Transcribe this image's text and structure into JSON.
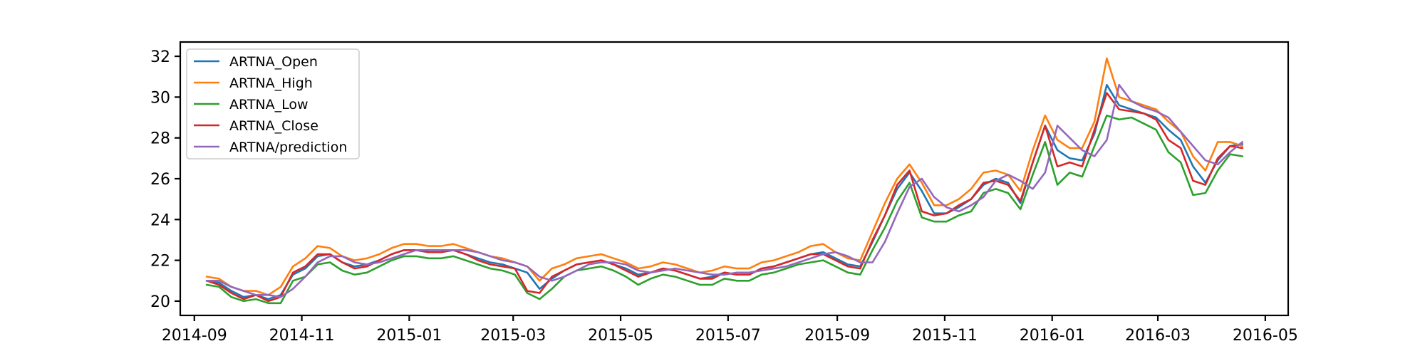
{
  "chart_data": {
    "type": "line",
    "title": "",
    "xlabel": "",
    "ylabel": "",
    "xlim": [
      "2014-08-24",
      "2016-05-14"
    ],
    "ylim": [
      19.3,
      32.7
    ],
    "grid": false,
    "legend_placement": "upper-left",
    "x_ticks": [
      "2014-09",
      "2014-11",
      "2015-01",
      "2015-03",
      "2015-05",
      "2015-07",
      "2015-09",
      "2015-11",
      "2016-01",
      "2016-03",
      "2016-05"
    ],
    "y_ticks": [
      20,
      22,
      24,
      26,
      28,
      30,
      32
    ],
    "x_tick_labels": [
      "2014-09",
      "2014-11",
      "2015-01",
      "2015-03",
      "2015-05",
      "2015-07",
      "2015-09",
      "2015-11",
      "2016-01",
      "2016-03",
      "2016-05"
    ],
    "y_tick_labels": [
      "20",
      "22",
      "24",
      "26",
      "28",
      "30",
      "32"
    ],
    "x": [
      "2014-09-08",
      "2014-09-15",
      "2014-09-22",
      "2014-09-29",
      "2014-10-06",
      "2014-10-13",
      "2014-10-20",
      "2014-10-27",
      "2014-11-03",
      "2014-11-10",
      "2014-11-17",
      "2014-11-24",
      "2014-12-01",
      "2014-12-08",
      "2014-12-15",
      "2014-12-22",
      "2014-12-29",
      "2015-01-05",
      "2015-01-12",
      "2015-01-19",
      "2015-01-26",
      "2015-02-02",
      "2015-02-09",
      "2015-02-16",
      "2015-02-23",
      "2015-03-02",
      "2015-03-09",
      "2015-03-16",
      "2015-03-23",
      "2015-03-30",
      "2015-04-06",
      "2015-04-13",
      "2015-04-20",
      "2015-04-27",
      "2015-05-04",
      "2015-05-11",
      "2015-05-18",
      "2015-05-25",
      "2015-06-01",
      "2015-06-08",
      "2015-06-15",
      "2015-06-22",
      "2015-06-29",
      "2015-07-06",
      "2015-07-13",
      "2015-07-20",
      "2015-07-27",
      "2015-08-03",
      "2015-08-10",
      "2015-08-17",
      "2015-08-24",
      "2015-08-31",
      "2015-09-07",
      "2015-09-14",
      "2015-09-21",
      "2015-09-28",
      "2015-10-05",
      "2015-10-12",
      "2015-10-19",
      "2015-10-26",
      "2015-11-02",
      "2015-11-09",
      "2015-11-16",
      "2015-11-23",
      "2015-11-30",
      "2015-12-07",
      "2015-12-14",
      "2015-12-21",
      "2015-12-28",
      "2016-01-04",
      "2016-01-11",
      "2016-01-18",
      "2016-01-25",
      "2016-02-01",
      "2016-02-08",
      "2016-02-15",
      "2016-02-22",
      "2016-02-29",
      "2016-03-07",
      "2016-03-14",
      "2016-03-21",
      "2016-03-28",
      "2016-04-04",
      "2016-04-11",
      "2016-04-18"
    ],
    "series": [
      {
        "name": "ARTNA_Open",
        "color": "#1f77b4",
        "values": [
          21.0,
          20.9,
          20.5,
          20.2,
          20.3,
          20.1,
          20.3,
          21.3,
          21.6,
          22.2,
          22.3,
          21.9,
          21.7,
          21.8,
          22.0,
          22.3,
          22.5,
          22.5,
          22.4,
          22.4,
          22.5,
          22.3,
          22.1,
          21.9,
          21.8,
          21.6,
          21.4,
          20.6,
          21.1,
          21.5,
          21.8,
          21.9,
          22.0,
          21.8,
          21.6,
          21.3,
          21.4,
          21.6,
          21.5,
          21.3,
          21.1,
          21.2,
          21.4,
          21.3,
          21.3,
          21.6,
          21.7,
          21.9,
          22.1,
          22.3,
          22.4,
          22.1,
          21.8,
          21.7,
          22.9,
          24.2,
          25.5,
          26.3,
          25.4,
          24.3,
          24.3,
          24.6,
          25.0,
          25.7,
          26.0,
          25.8,
          24.8,
          26.8,
          28.6,
          27.4,
          27.0,
          26.9,
          28.2,
          30.6,
          29.6,
          29.4,
          29.2,
          29.0,
          28.4,
          27.9,
          26.6,
          25.8,
          26.9,
          27.6,
          27.7
        ]
      },
      {
        "name": "ARTNA_High",
        "color": "#ff7f0e",
        "values": [
          21.2,
          21.1,
          20.7,
          20.5,
          20.5,
          20.3,
          20.7,
          21.7,
          22.1,
          22.7,
          22.6,
          22.2,
          22.0,
          22.1,
          22.3,
          22.6,
          22.8,
          22.8,
          22.7,
          22.7,
          22.8,
          22.6,
          22.4,
          22.2,
          22.1,
          21.9,
          21.7,
          21.0,
          21.6,
          21.8,
          22.1,
          22.2,
          22.3,
          22.1,
          21.9,
          21.6,
          21.7,
          21.9,
          21.8,
          21.6,
          21.4,
          21.5,
          21.7,
          21.6,
          21.6,
          21.9,
          22.0,
          22.2,
          22.4,
          22.7,
          22.8,
          22.4,
          22.1,
          22.0,
          23.4,
          24.8,
          26.0,
          26.7,
          25.8,
          24.7,
          24.7,
          25.0,
          25.5,
          26.3,
          26.4,
          26.2,
          25.4,
          27.4,
          29.1,
          27.9,
          27.5,
          27.5,
          28.8,
          31.9,
          30.0,
          29.8,
          29.6,
          29.4,
          28.8,
          28.3,
          27.1,
          26.4,
          27.8,
          27.8,
          27.6
        ]
      },
      {
        "name": "ARTNA_Low",
        "color": "#2ca02c",
        "values": [
          20.8,
          20.7,
          20.2,
          20.0,
          20.1,
          19.9,
          19.9,
          21.0,
          21.2,
          21.8,
          21.9,
          21.5,
          21.3,
          21.4,
          21.7,
          22.0,
          22.2,
          22.2,
          22.1,
          22.1,
          22.2,
          22.0,
          21.8,
          21.6,
          21.5,
          21.3,
          20.4,
          20.1,
          20.6,
          21.2,
          21.5,
          21.6,
          21.7,
          21.5,
          21.2,
          20.8,
          21.1,
          21.3,
          21.2,
          21.0,
          20.8,
          20.8,
          21.1,
          21.0,
          21.0,
          21.3,
          21.4,
          21.6,
          21.8,
          21.9,
          22.0,
          21.7,
          21.4,
          21.3,
          22.5,
          23.6,
          24.9,
          25.8,
          24.1,
          23.9,
          23.9,
          24.2,
          24.4,
          25.3,
          25.5,
          25.3,
          24.5,
          26.2,
          27.8,
          25.7,
          26.3,
          26.1,
          27.6,
          29.1,
          28.9,
          29.0,
          28.7,
          28.4,
          27.3,
          26.8,
          25.2,
          25.3,
          26.4,
          27.2,
          27.1
        ]
      },
      {
        "name": "ARTNA_Close",
        "color": "#d62728",
        "values": [
          21.0,
          20.8,
          20.4,
          20.1,
          20.3,
          20.0,
          20.2,
          21.4,
          21.7,
          22.3,
          22.3,
          21.9,
          21.6,
          21.7,
          22.0,
          22.3,
          22.5,
          22.5,
          22.4,
          22.4,
          22.5,
          22.3,
          22.0,
          21.8,
          21.7,
          21.6,
          20.5,
          20.4,
          21.2,
          21.5,
          21.8,
          21.9,
          22.0,
          21.8,
          21.5,
          21.2,
          21.4,
          21.6,
          21.5,
          21.3,
          21.1,
          21.1,
          21.4,
          21.3,
          21.3,
          21.6,
          21.7,
          21.9,
          22.1,
          22.3,
          22.3,
          22.0,
          21.7,
          21.6,
          23.0,
          24.2,
          25.7,
          26.4,
          24.4,
          24.2,
          24.3,
          24.7,
          25.0,
          25.8,
          25.9,
          25.7,
          24.9,
          26.8,
          28.6,
          26.6,
          26.8,
          26.6,
          28.4,
          30.2,
          29.4,
          29.3,
          29.2,
          28.9,
          27.9,
          27.5,
          25.9,
          25.7,
          27.0,
          27.6,
          27.5
        ]
      },
      {
        "name": "ARTNA/prediction",
        "color": "#9467bd",
        "values": [
          21.0,
          21.0,
          20.7,
          20.5,
          20.3,
          20.3,
          20.2,
          20.6,
          21.2,
          21.9,
          22.2,
          22.2,
          21.9,
          21.8,
          21.9,
          22.1,
          22.3,
          22.5,
          22.5,
          22.5,
          22.5,
          22.5,
          22.4,
          22.2,
          22.0,
          21.9,
          21.7,
          21.2,
          21.0,
          21.2,
          21.5,
          21.8,
          21.9,
          21.9,
          21.8,
          21.5,
          21.4,
          21.5,
          21.6,
          21.5,
          21.4,
          21.3,
          21.3,
          21.4,
          21.4,
          21.5,
          21.6,
          21.7,
          21.9,
          22.1,
          22.3,
          22.4,
          22.2,
          21.9,
          21.9,
          22.9,
          24.3,
          25.6,
          26.0,
          25.1,
          24.6,
          24.4,
          24.7,
          25.1,
          25.9,
          26.2,
          25.9,
          25.5,
          26.3,
          28.6,
          28.0,
          27.4,
          27.1,
          27.9,
          30.6,
          29.8,
          29.5,
          29.3,
          29.0,
          28.3,
          27.6,
          26.9,
          26.7,
          27.3,
          27.8
        ]
      }
    ]
  }
}
